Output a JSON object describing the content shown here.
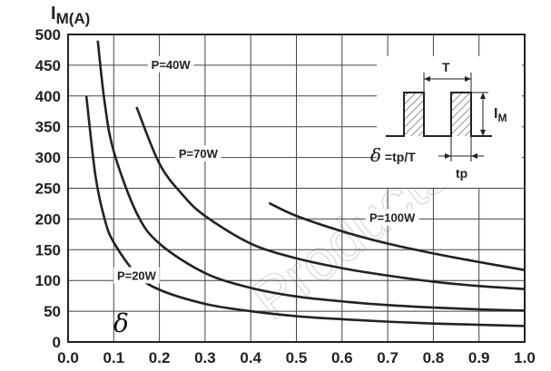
{
  "chart_data": {
    "type": "line",
    "ylabel": "IM(A)",
    "ylabel_main": "I",
    "ylabel_sub": "M(A)",
    "x_axis_symbol": "δ",
    "xlim": [
      0.0,
      1.0
    ],
    "ylim": [
      0,
      500
    ],
    "x_ticks": [
      "0.0",
      "0.1",
      "0.2",
      "0.3",
      "0.4",
      "0.5",
      "0.6",
      "0.7",
      "0.8",
      "0.9",
      "1.0"
    ],
    "y_ticks": [
      "0",
      "50",
      "100",
      "150",
      "200",
      "250",
      "300",
      "350",
      "400",
      "450",
      "500"
    ],
    "grid": true,
    "series": [
      {
        "name": "P=20W",
        "x": [
          0.04,
          0.06,
          0.08,
          0.1,
          0.15,
          0.2,
          0.3,
          0.4,
          0.5,
          0.6,
          0.7,
          0.8,
          0.9,
          1.0
        ],
        "values": [
          400,
          270,
          200,
          162,
          110,
          85,
          62,
          50,
          42,
          37,
          33,
          30,
          28,
          26
        ]
      },
      {
        "name": "P=40W",
        "x": [
          0.065,
          0.08,
          0.1,
          0.15,
          0.2,
          0.3,
          0.4,
          0.5,
          0.6,
          0.7,
          0.8,
          0.9,
          1.0
        ],
        "values": [
          490,
          390,
          310,
          210,
          160,
          112,
          88,
          74,
          66,
          60,
          56,
          53,
          51
        ]
      },
      {
        "name": "P=70W",
        "x": [
          0.15,
          0.2,
          0.25,
          0.3,
          0.4,
          0.5,
          0.6,
          0.7,
          0.8,
          0.9,
          1.0
        ],
        "values": [
          382,
          290,
          240,
          205,
          160,
          136,
          120,
          108,
          98,
          91,
          86
        ]
      },
      {
        "name": "P=100W",
        "x": [
          0.44,
          0.5,
          0.6,
          0.7,
          0.8,
          0.9,
          1.0
        ],
        "values": [
          226,
          205,
          180,
          160,
          144,
          130,
          117
        ]
      }
    ],
    "inset": {
      "period_label": "T",
      "pulse_width_label": "tp",
      "amplitude_label": "I",
      "amplitude_sub": "M",
      "formula_symbol": "δ",
      "formula_text": " =tp/T"
    },
    "watermark": "Products"
  }
}
